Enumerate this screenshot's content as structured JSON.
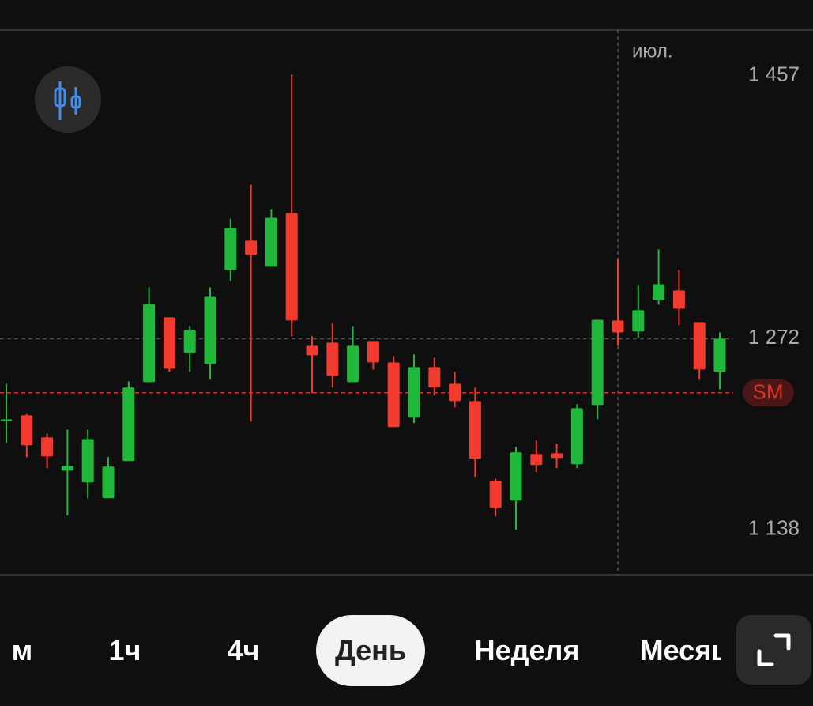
{
  "chart_data": {
    "type": "candlestick",
    "categories": [
      null,
      null,
      null,
      null,
      null,
      null,
      null,
      null,
      null,
      null,
      null,
      null,
      null,
      null,
      null,
      null,
      null,
      null,
      null,
      null,
      null,
      null,
      null,
      null,
      null,
      null,
      null,
      null,
      null,
      null,
      "июл.",
      null,
      null,
      null,
      null,
      null
    ],
    "open": [
      1215.3,
      1218.1,
      1202.6,
      1179.2,
      1170.9,
      1159.8,
      1185.9,
      1241.4,
      1287.0,
      1262.0,
      1254.2,
      1320.3,
      1340.9,
      1322.6,
      1360.3,
      1267.0,
      1269.2,
      1241.4,
      1270.3,
      1255.3,
      1216.4,
      1252.0,
      1240.3,
      1228.1,
      1172.0,
      1158.1,
      1190.9,
      1191.4,
      1183.7,
      1225.3,
      1284.8,
      1277.0,
      1299.2,
      1305.9,
      1283.7,
      1248.7
    ],
    "high": [
      1240.3,
      1219.0,
      1205.3,
      1208.1,
      1208.1,
      1188.7,
      1242.0,
      1308.1,
      1287.0,
      1280.9,
      1308.1,
      1356.4,
      1380.3,
      1363.1,
      1457.6,
      1273.7,
      1283.1,
      1280.9,
      1270.3,
      1259.8,
      1260.9,
      1258.7,
      1248.7,
      1237.6,
      1173.7,
      1195.9,
      1200.3,
      1198.1,
      1225.9,
      1285.3,
      1328.1,
      1309.8,
      1334.8,
      1320.3,
      1283.7,
      1276.4
    ],
    "low": [
      1198.7,
      1188.7,
      1180.9,
      1147.6,
      1159.8,
      1159.8,
      1185.9,
      1241.4,
      1248.7,
      1248.7,
      1243.1,
      1312.6,
      1213.7,
      1322.6,
      1273.7,
      1233.7,
      1237.6,
      1241.4,
      1250.3,
      1209.8,
      1212.6,
      1232.0,
      1223.7,
      1174.8,
      1147.0,
      1137.6,
      1178.1,
      1180.9,
      1180.9,
      1215.3,
      1267.0,
      1272.6,
      1295.9,
      1281.4,
      1243.1,
      1236.4
    ],
    "close": [
      1215.3,
      1197.0,
      1189.2,
      1182.5,
      1201.4,
      1182.0,
      1237.6,
      1296.4,
      1250.9,
      1278.1,
      1301.4,
      1349.8,
      1330.9,
      1357.0,
      1284.8,
      1260.3,
      1245.9,
      1267.0,
      1255.3,
      1209.8,
      1252.0,
      1237.6,
      1228.1,
      1187.6,
      1153.1,
      1192.0,
      1183.1,
      1188.1,
      1223.1,
      1285.3,
      1276.4,
      1292.0,
      1310.3,
      1293.1,
      1250.3,
      1272.0
    ],
    "up_color": "#1fb83a",
    "down_color": "#f23a2f",
    "ylim": [
      1106,
      1489
    ],
    "yticks": [
      {
        "value": 1457,
        "label": "1 457"
      },
      {
        "value": 1272,
        "label": "1 272"
      },
      {
        "value": 1138,
        "label": "1 138"
      }
    ],
    "level_lines": [
      {
        "value": 1272,
        "color": "#555555"
      },
      {
        "value": 1234,
        "label": "SM",
        "color": "#e0302a"
      }
    ]
  },
  "timeframes": {
    "items": [
      "м",
      "1ч",
      "4ч",
      "День",
      "Неделя",
      "Месяц"
    ],
    "selected": 3
  }
}
